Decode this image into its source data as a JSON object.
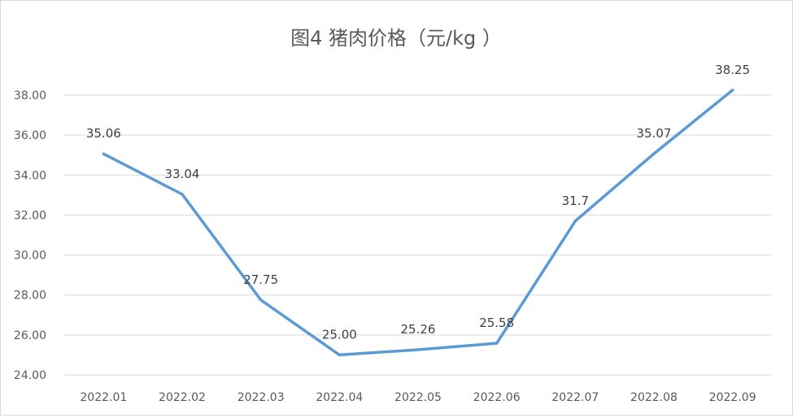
{
  "chart_data": {
    "type": "line",
    "title": "图4  猪肉价格（元/kg ）",
    "xlabel": "",
    "ylabel": "",
    "categories": [
      "2022.01",
      "2022.02",
      "2022.03",
      "2022.04",
      "2022.05",
      "2022.06",
      "2022.07",
      "2022.08",
      "2022.09"
    ],
    "series": [
      {
        "values": [
          35.06,
          33.04,
          27.75,
          25.0,
          25.26,
          25.58,
          31.7,
          35.07,
          38.25
        ],
        "labels": [
          "35.06",
          "33.04",
          "27.75",
          "25.00",
          "25.26",
          "25.58",
          "31.7",
          "35.07",
          "38.25"
        ],
        "color": "#5b9bd5"
      }
    ],
    "ylim": [
      24,
      38
    ],
    "yticks": [
      "24.00",
      "26.00",
      "28.00",
      "30.00",
      "32.00",
      "34.00",
      "36.00",
      "38.00"
    ],
    "grid": true,
    "gridline_color": "#d9d9d9",
    "legend": "none"
  }
}
